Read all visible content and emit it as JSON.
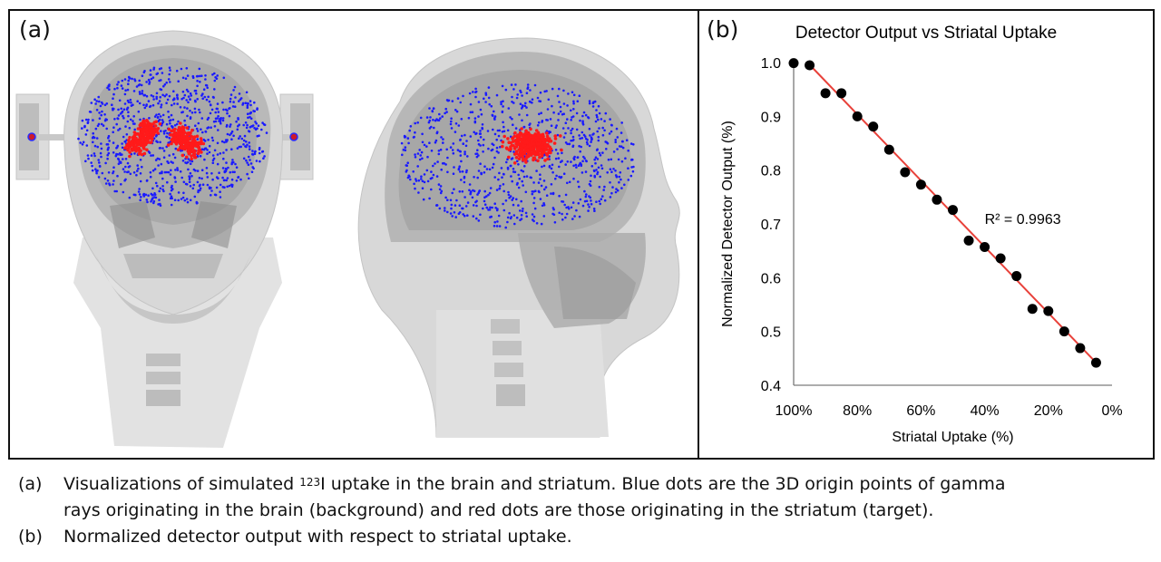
{
  "panel_a": {
    "label": "(a)"
  },
  "panel_b": {
    "label": "(b)"
  },
  "colors": {
    "blue_dots": "#1a1aff",
    "red_dots": "#ff1a1a",
    "data_points": "#000000",
    "fit_line": "#e8413a",
    "head_fill": "#c8c8c8",
    "skull_fill": "#9e9e9e"
  },
  "chart_data": {
    "type": "scatter",
    "title": "Detector Output vs Striatal Uptake",
    "xlabel": "Striatal Uptake (%)",
    "ylabel": "Normalized Detector Output (%)",
    "x_reversed": true,
    "xlim": [
      100,
      0
    ],
    "ylim": [
      0.4,
      1.0
    ],
    "xticks": [
      "100%",
      "80%",
      "60%",
      "40%",
      "20%",
      "0%"
    ],
    "xtick_values": [
      100,
      80,
      60,
      40,
      20,
      0
    ],
    "yticks": [
      "1.0",
      "0.9",
      "0.8",
      "0.7",
      "0.6",
      "0.5",
      "0.4"
    ],
    "ytick_values": [
      1.0,
      0.9,
      0.8,
      0.7,
      0.6,
      0.5,
      0.4
    ],
    "series": [
      {
        "x": [
          100,
          95,
          90,
          85,
          80,
          75,
          70,
          65,
          60,
          55,
          50,
          45,
          40,
          35,
          30,
          25,
          20,
          15,
          10,
          5
        ],
        "y": [
          0.999,
          0.995,
          0.943,
          0.943,
          0.9,
          0.881,
          0.838,
          0.796,
          0.773,
          0.745,
          0.726,
          0.669,
          0.657,
          0.636,
          0.603,
          0.542,
          0.538,
          0.5,
          0.469,
          0.442
        ]
      }
    ],
    "trendline": {
      "type": "linear",
      "x": [
        95,
        5
      ],
      "y": [
        0.996,
        0.442
      ]
    },
    "annotation": "R² = 0.9963",
    "annotation_at": {
      "x": 40,
      "y": 0.7
    },
    "grid": false,
    "legend": "none"
  },
  "caption": {
    "a_key": "(a)",
    "a_text_1": "Visualizations of simulated ",
    "a_sup": "123",
    "a_text_2": "I uptake in the brain and striatum. Blue dots are the 3D origin points of gamma",
    "a_text_3": "rays originating in the brain (background) and red dots are those originating in the striatum (target).",
    "b_key": "(b)",
    "b_text": "Normalized detector output with respect to striatal uptake."
  }
}
